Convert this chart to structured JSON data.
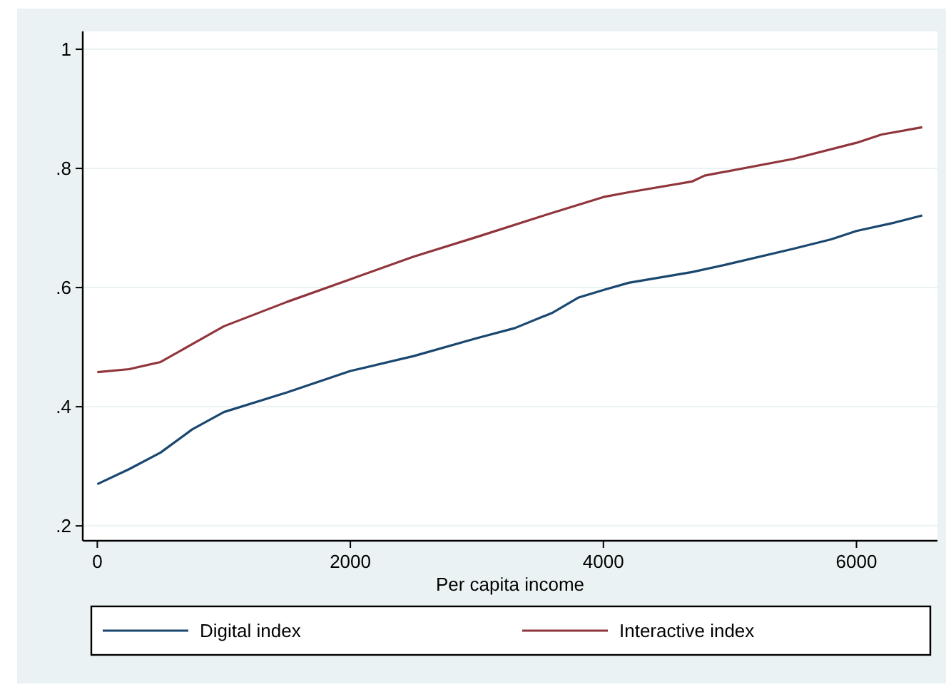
{
  "chart_data": {
    "type": "line",
    "xlabel": "Per capita income",
    "x": [
      0,
      250,
      500,
      750,
      1000,
      1500,
      2000,
      2500,
      3000,
      3300,
      3500,
      3600,
      3800,
      4000,
      4200,
      4700,
      4800,
      5000,
      5500,
      5800,
      6000,
      6200,
      6300,
      6520
    ],
    "series": [
      {
        "name": "Digital index",
        "color": "#1a476f",
        "values": [
          0.27,
          0.295,
          0.323,
          0.362,
          0.391,
          0.424,
          0.46,
          0.485,
          0.515,
          0.532,
          null,
          0.558,
          0.583,
          0.596,
          0.608,
          0.626,
          null,
          0.64,
          0.665,
          0.681,
          0.695,
          null,
          0.709,
          0.721
        ]
      },
      {
        "name": "Interactive index",
        "color": "#90353b",
        "values": [
          0.458,
          0.463,
          0.475,
          0.505,
          0.535,
          0.576,
          0.614,
          0.652,
          0.685,
          null,
          0.719,
          null,
          null,
          0.752,
          0.76,
          0.778,
          0.788,
          null,
          0.816,
          null,
          0.843,
          0.857,
          null,
          0.869
        ]
      }
    ],
    "xlim": [
      -115,
      6640
    ],
    "xticks": [
      0,
      2000,
      4000,
      6000
    ],
    "ylim": [
      0.175,
      1.03
    ],
    "yticks": [
      {
        "value": 0.2,
        "label": ".2"
      },
      {
        "value": 0.4,
        "label": ".4"
      },
      {
        "value": 0.6,
        "label": ".6"
      },
      {
        "value": 0.8,
        "label": ".8"
      },
      {
        "value": 1,
        "label": "1"
      }
    ],
    "grid": "y",
    "legend": "bottom",
    "line_style": "solid",
    "marker": "none"
  }
}
